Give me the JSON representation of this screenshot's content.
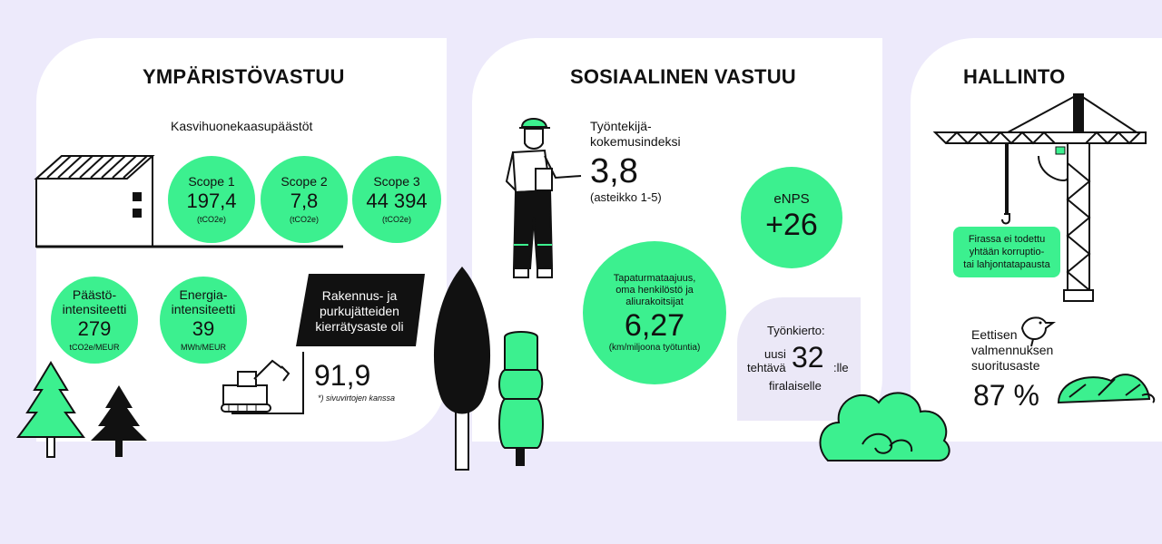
{
  "environment": {
    "title": "YMPÄRISTÖVASTUU",
    "ghg_label": "Kasvihuonekaasupäästöt",
    "scopes": [
      {
        "label": "Scope 1",
        "value": "197,4",
        "unit": "(tCO2e)"
      },
      {
        "label": "Scope 2",
        "value": "7,8",
        "unit": "(tCO2e)"
      },
      {
        "label": "Scope 3",
        "value": "44 394",
        "unit": "(tCO2e)"
      }
    ],
    "emission_intensity": {
      "label_line1": "Päästö-",
      "label_line2": "intensiteetti",
      "value": "279",
      "unit": "tCO2e/MEUR"
    },
    "energy_intensity": {
      "label_line1": "Energia-",
      "label_line2": "intensiteetti",
      "value": "39",
      "unit": "MWh/MEUR"
    },
    "recycling": {
      "label_line1": "Rakennus- ja",
      "label_line2": "purkujätteiden",
      "label_line3": "kierrätysaste oli",
      "value": "91,9",
      "note": "*) sivuvirtojen kanssa"
    }
  },
  "social": {
    "title": "SOSIAALINEN VASTUU",
    "employee_index": {
      "label_line1": "Työntekijä-",
      "label_line2": "kokemusindeksi",
      "value": "3,8",
      "scale": "(asteikko 1-5)"
    },
    "enps": {
      "label": "eNPS",
      "value": "+26"
    },
    "accidents": {
      "label_line1": "Tapaturmataajuus,",
      "label_line2": "oma henkilöstö ja",
      "label_line3": "aliurakoitsijat",
      "value": "6,27",
      "unit": "(km/miljoona työtuntia)"
    },
    "rotation": {
      "label": "Työnkierto:",
      "word_left_1": "uusi",
      "word_left_2": "tehtävä",
      "value": "32",
      "suffix": ":lle",
      "word_bottom": "firalaiselle"
    }
  },
  "governance": {
    "title": "HALLINTO",
    "corruption_line1": "Firassa ei todettu",
    "corruption_line2": "yhtään korruptio-",
    "corruption_line3": "tai lahjontatapausta",
    "ethics_line1": "Eettisen",
    "ethics_line2": "valmennuksen",
    "ethics_line3": "suoritusaste",
    "ethics_value": "87 %"
  },
  "colors": {
    "accent": "#3cf08f",
    "background": "#edeafb",
    "panel": "#ffffff",
    "ink": "#111111",
    "cloud": "#e3def6"
  }
}
